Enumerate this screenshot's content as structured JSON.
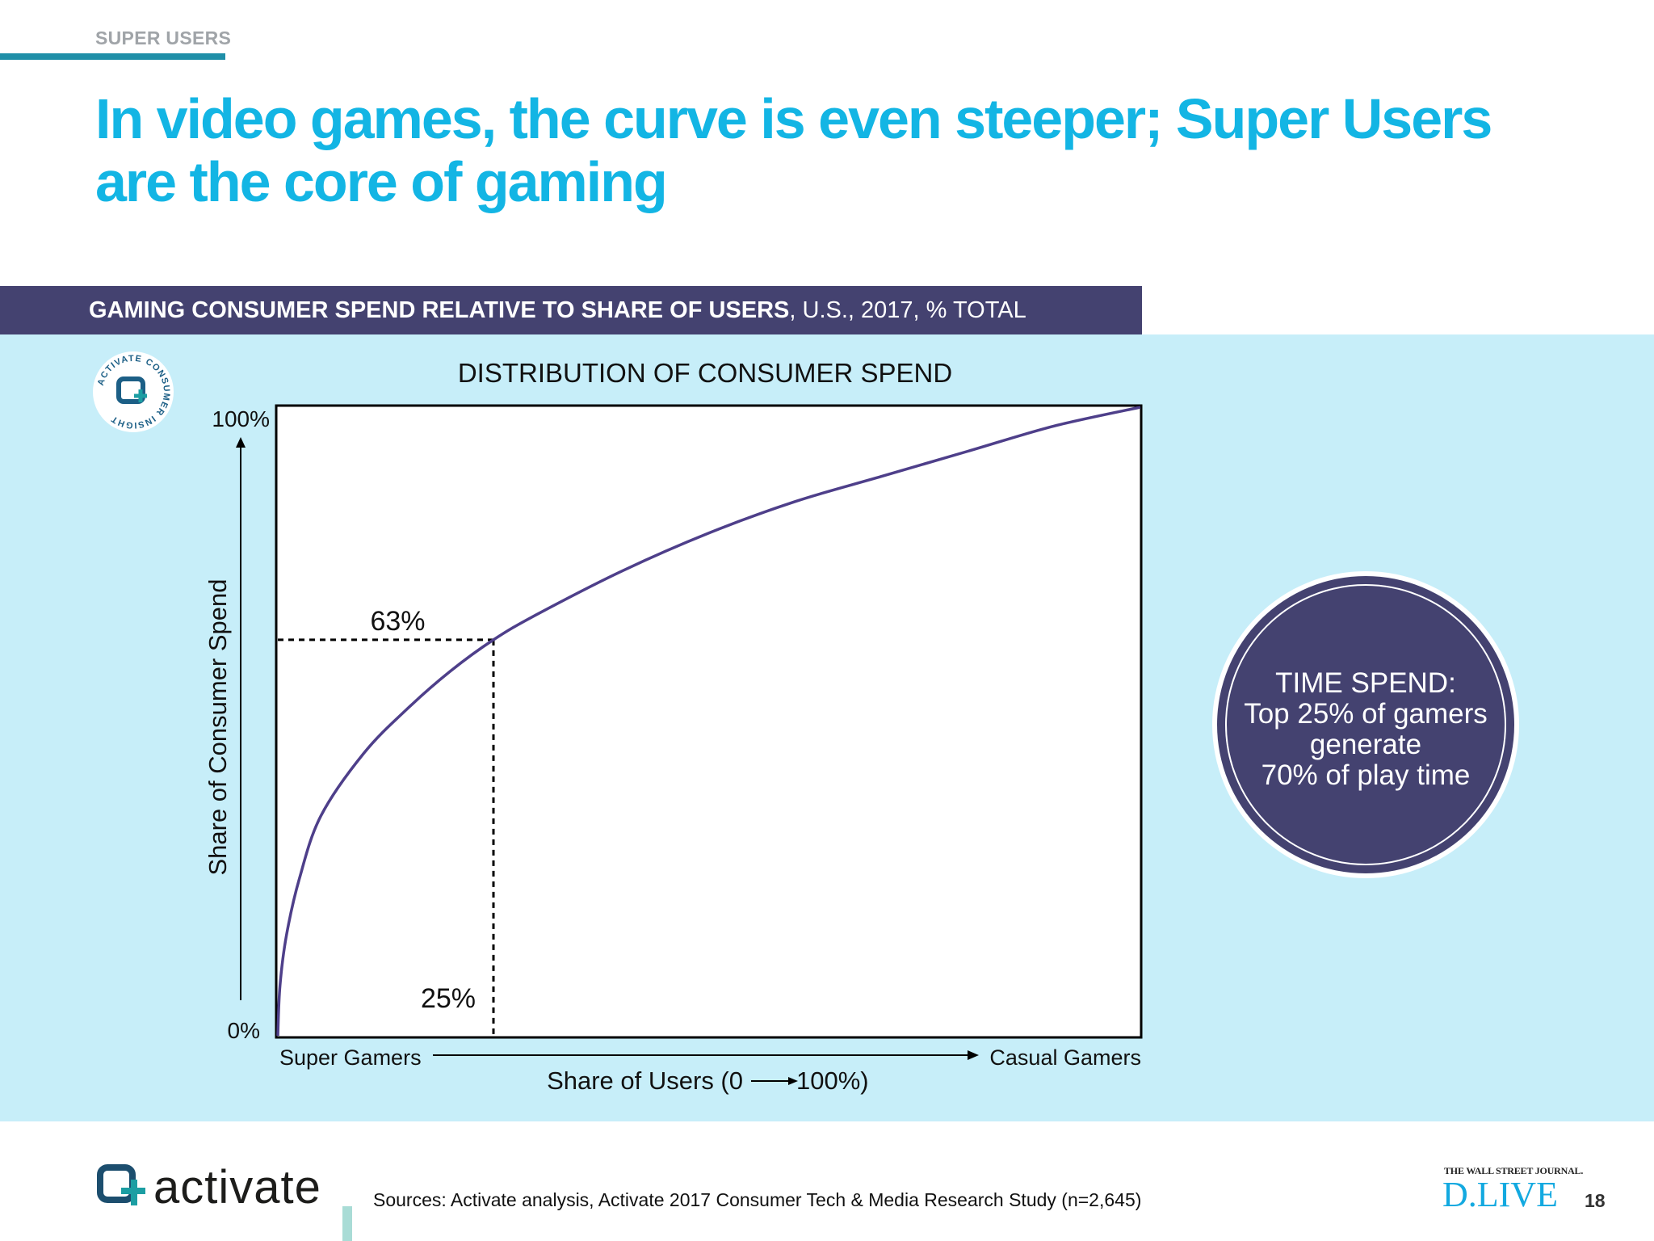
{
  "section_label": "SUPER USERS",
  "headline": "In video games, the curve is even steeper; Super Users are the core of gaming",
  "chart_header": {
    "bold": "GAMING CONSUMER SPEND RELATIVE TO SHARE OF USERS",
    "rest": ", U.S., 2017, % TOTAL"
  },
  "badge": {
    "ring_text": "ACTIVATE CONSUMER INSIGHT"
  },
  "chart_data": {
    "type": "line",
    "title": "DISTRIBUTION OF CONSUMER SPEND",
    "ylabel": "Share of Consumer Spend",
    "xlabel": "Share of Users (0",
    "xlabel_end": "100%)",
    "x_left_label": "Super Gamers",
    "x_right_label": "Casual Gamers",
    "y_top_label": "100%",
    "y_bottom_label": "0%",
    "xlim": [
      0,
      100
    ],
    "ylim": [
      0,
      100
    ],
    "grid": false,
    "series": [
      {
        "x": [
          0,
          0.25,
          1,
          2.5,
          5,
          10,
          15,
          20,
          25,
          30,
          40,
          50,
          60,
          70,
          80,
          90,
          100
        ],
        "y": [
          0,
          8,
          16,
          25,
          35,
          45,
          52,
          58,
          63,
          67,
          74,
          80,
          85,
          89,
          93,
          97,
          100
        ]
      }
    ],
    "annotations": [
      {
        "label": "63%",
        "value": 63
      },
      {
        "label": "25%",
        "value": 25
      }
    ],
    "colors": {
      "curve": "#4e3f8a",
      "axis": "#000000"
    }
  },
  "callout": {
    "lines": [
      "TIME SPEND:",
      "Top 25% of gamers",
      "generate",
      "70% of play time"
    ]
  },
  "footer": {
    "logo_text": "activate",
    "sources": "Sources: Activate analysis, Activate 2017 Consumer Tech & Media Research Study (n=2,645)",
    "partner_top": "THE WALL STREET JOURNAL.",
    "partner_main": "D.LIVE",
    "page_number": "18"
  }
}
